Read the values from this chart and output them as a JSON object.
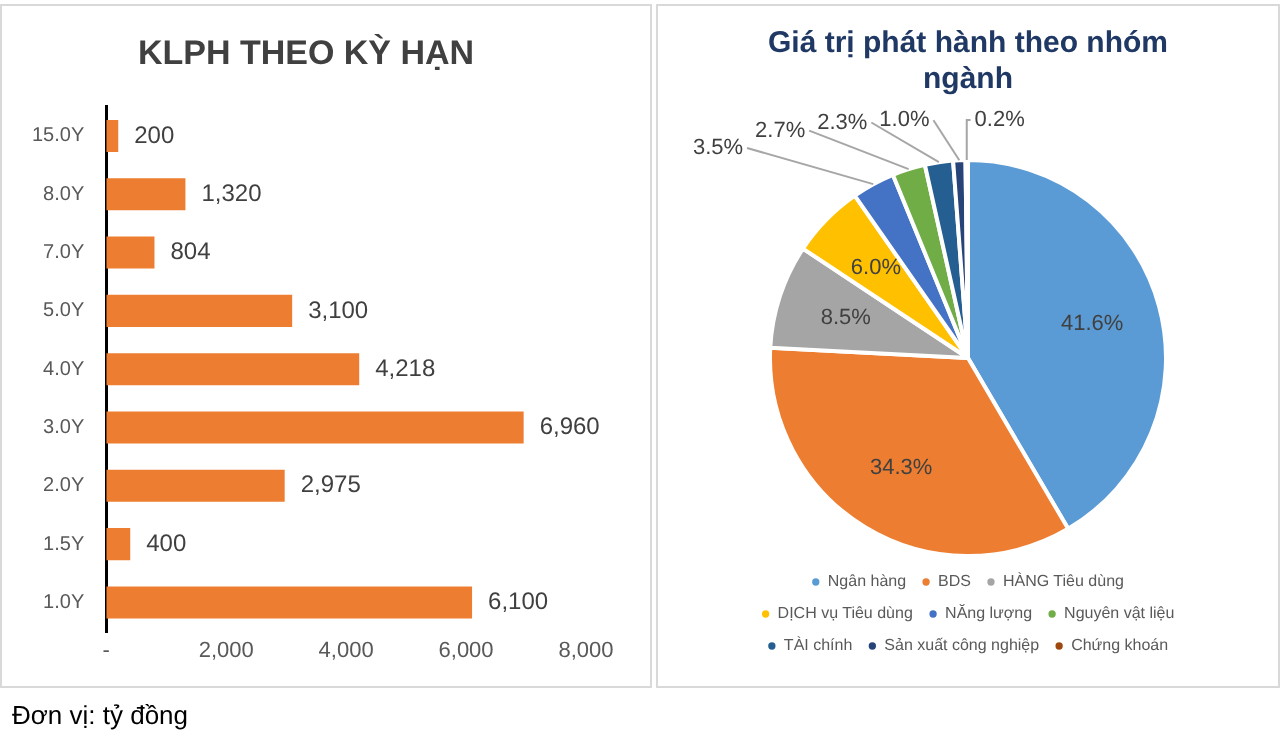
{
  "chart_data": [
    {
      "type": "bar",
      "orientation": "horizontal",
      "title": "KLPH THEO KỲ HẠN",
      "categories": [
        "15.0Y",
        "8.0Y",
        "7.0Y",
        "5.0Y",
        "4.0Y",
        "3.0Y",
        "2.0Y",
        "1.5Y",
        "1.0Y"
      ],
      "values": [
        200,
        1320,
        804,
        3100,
        4218,
        6960,
        2975,
        400,
        6100
      ],
      "color": "#ed7d31",
      "xlim": [
        0,
        8000
      ],
      "xticks": [
        {
          "value": 0,
          "label": "-"
        },
        {
          "value": 2000,
          "label": "2,000"
        },
        {
          "value": 4000,
          "label": "4,000"
        },
        {
          "value": 6000,
          "label": "6,000"
        },
        {
          "value": 8000,
          "label": "8,000"
        }
      ],
      "grid": false,
      "legend": false,
      "value_labels": [
        "200",
        "1,320",
        "804",
        "3,100",
        "4,218",
        "6,960",
        "2,975",
        "400",
        "6,100"
      ],
      "annotations": [
        "Đơn vị: tỷ đồng"
      ]
    },
    {
      "type": "pie",
      "title": "Giá trị phát hành theo nhóm ngành",
      "categories": [
        "Ngân hàng",
        "BDS",
        "HÀNG Tiêu dùng",
        "DỊCH vụ Tiêu dùng",
        "NĂng lượng",
        "Nguyên vật liệu",
        "TÀI chính",
        "Sản xuất công nghiệp",
        "Chứng khoán"
      ],
      "values": [
        41.6,
        34.3,
        8.5,
        6.0,
        3.5,
        2.7,
        2.3,
        1.0,
        0.2
      ],
      "value_labels": [
        "41.6%",
        "34.3%",
        "8.5%",
        "6.0%",
        "3.5%",
        "2.7%",
        "2.3%",
        "1.0%",
        "0.2%"
      ],
      "colors": [
        "#5b9bd5",
        "#ed7d31",
        "#a5a5a5",
        "#ffc000",
        "#4472c4",
        "#70ad47",
        "#255e91",
        "#264478",
        "#9e480e"
      ],
      "legend": "bottom"
    }
  ]
}
